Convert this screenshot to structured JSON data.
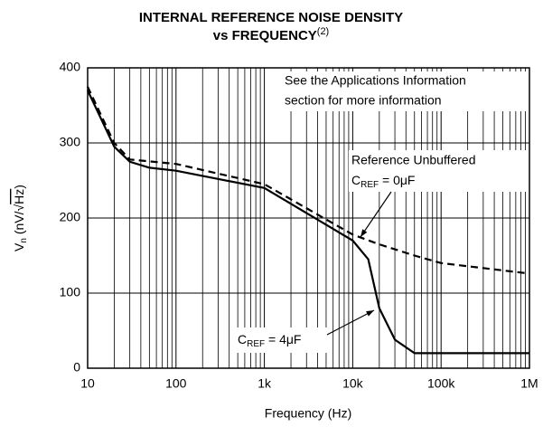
{
  "chart_data": {
    "type": "line",
    "title": [
      "INTERNAL REFERENCE NOISE DENSITY",
      "vs FREQUENCY"
    ],
    "title_note": "(2)",
    "x_label": "Frequency (Hz)",
    "y_label": {
      "symbol": "V",
      "sub": "n",
      "open": " (nV/√",
      "radicand": "Hz",
      "close": ")"
    },
    "log_x": true,
    "grid": true,
    "xlim": [
      10,
      1000000
    ],
    "xticks": [
      10,
      100,
      {
        "value": 1000,
        "label": "1k"
      },
      {
        "value": 10000,
        "label": "10k"
      },
      {
        "value": 100000,
        "label": "100k"
      },
      {
        "value": 1000000,
        "label": "1M"
      }
    ],
    "ylim": [
      0,
      400
    ],
    "yticks": [
      0,
      100,
      200,
      300,
      400
    ],
    "series": [
      {
        "name": [
          "C",
          "REF",
          " = 4μF"
        ],
        "color": "#000000",
        "style": "solid",
        "x": [
          10,
          20,
          30,
          50,
          100,
          1000,
          10000,
          15000,
          20000,
          30000,
          50000,
          1000000
        ],
        "values": [
          370,
          295,
          275,
          267,
          263,
          240,
          170,
          145,
          80,
          38,
          20,
          20
        ]
      },
      {
        "name": [
          "C",
          "REF",
          " = 0μF"
        ],
        "color": "#000000",
        "style": "dashed",
        "x": [
          10,
          20,
          30,
          100,
          1000,
          10000,
          20000,
          50000,
          100000,
          1000000
        ],
        "values": [
          375,
          300,
          278,
          272,
          245,
          178,
          165,
          150,
          140,
          126
        ]
      }
    ],
    "annotations": [
      "See the Applications Information",
      "section for more information",
      "Reference Unbuffered"
    ]
  }
}
